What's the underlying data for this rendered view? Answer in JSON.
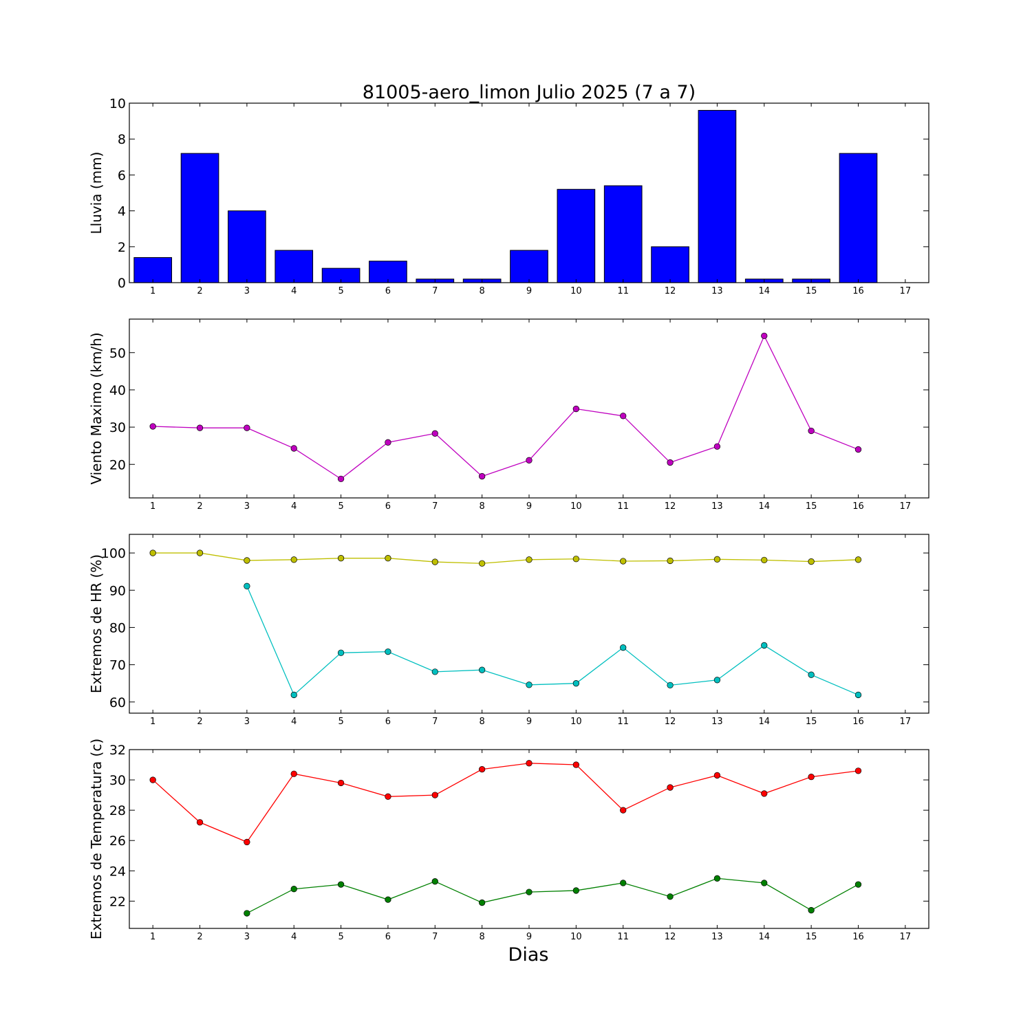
{
  "chart_data": {
    "title": "81005-aero_limon Julio 2025  (7 a 7)",
    "xlabel": "Dias",
    "x_ticks": [
      1,
      2,
      3,
      4,
      5,
      6,
      7,
      8,
      9,
      10,
      11,
      12,
      13,
      14,
      15,
      16,
      17
    ],
    "xlim": [
      0.5,
      17.5
    ],
    "panels": [
      {
        "type": "bar",
        "ylabel": "Lluvia (mm)",
        "ylim": [
          0,
          10
        ],
        "y_ticks": [
          0,
          2,
          4,
          6,
          8,
          10
        ],
        "series": [
          {
            "color": "#0000ff",
            "x": [
              1,
              2,
              3,
              4,
              5,
              6,
              7,
              8,
              9,
              10,
              11,
              12,
              13,
              14,
              15,
              16
            ],
            "values": [
              1.4,
              7.2,
              4.0,
              1.8,
              0.8,
              1.2,
              0.2,
              0.2,
              1.8,
              5.2,
              5.4,
              2.0,
              9.6,
              0.2,
              0.2,
              7.2
            ]
          }
        ]
      },
      {
        "type": "line",
        "ylabel": "Viento Maximo (km/h)",
        "ylim": [
          11,
          59
        ],
        "y_ticks": [
          20,
          30,
          40,
          50
        ],
        "series": [
          {
            "color": "#bf00bf",
            "x": [
              1,
              2,
              3,
              4,
              5,
              6,
              7,
              8,
              9,
              10,
              11,
              12,
              13,
              14,
              15,
              16
            ],
            "values": [
              30.2,
              29.8,
              29.8,
              24.3,
              16.1,
              25.9,
              28.3,
              16.8,
              21.1,
              34.9,
              33.0,
              20.5,
              24.8,
              54.5,
              29.0,
              24.0
            ]
          }
        ]
      },
      {
        "type": "line",
        "ylabel": "Extremos de HR (%)",
        "ylim": [
          57,
          105
        ],
        "y_ticks": [
          60,
          70,
          80,
          90,
          100
        ],
        "series": [
          {
            "color": "#bfbf00",
            "x": [
              1,
              2,
              3,
              4,
              5,
              6,
              7,
              8,
              9,
              10,
              11,
              12,
              13,
              14,
              15,
              16
            ],
            "values": [
              100,
              100,
              98,
              98.2,
              98.6,
              98.6,
              97.6,
              97.2,
              98.2,
              98.4,
              97.8,
              97.9,
              98.3,
              98.1,
              97.7,
              98.2
            ]
          },
          {
            "color": "#00bfbf",
            "x": [
              3,
              4,
              5,
              6,
              7,
              8,
              9,
              10,
              11,
              12,
              13,
              14,
              15,
              16
            ],
            "values": [
              91.1,
              61.9,
              73.2,
              73.5,
              68.1,
              68.6,
              64.6,
              65.0,
              74.6,
              64.5,
              65.9,
              75.2,
              67.3,
              61.9
            ]
          }
        ]
      },
      {
        "type": "line",
        "ylabel": "Extremos de Temperatura (c)",
        "ylim": [
          20.2,
          32
        ],
        "y_ticks": [
          22,
          24,
          26,
          28,
          30,
          32
        ],
        "series": [
          {
            "color": "#ff0000",
            "x": [
              1,
              2,
              3,
              4,
              5,
              6,
              7,
              8,
              9,
              10,
              11,
              12,
              13,
              14,
              15,
              16
            ],
            "values": [
              30.0,
              27.2,
              25.9,
              30.4,
              29.8,
              28.9,
              29.0,
              30.7,
              31.1,
              31.0,
              28.0,
              29.5,
              30.3,
              29.1,
              30.2,
              30.6
            ]
          },
          {
            "color": "#008000",
            "x": [
              3,
              4,
              5,
              6,
              7,
              8,
              9,
              10,
              11,
              12,
              13,
              14,
              15,
              16
            ],
            "values": [
              21.2,
              22.8,
              23.1,
              22.1,
              23.3,
              21.9,
              22.6,
              22.7,
              23.2,
              22.3,
              23.5,
              23.2,
              21.4,
              23.1
            ]
          }
        ]
      }
    ]
  }
}
